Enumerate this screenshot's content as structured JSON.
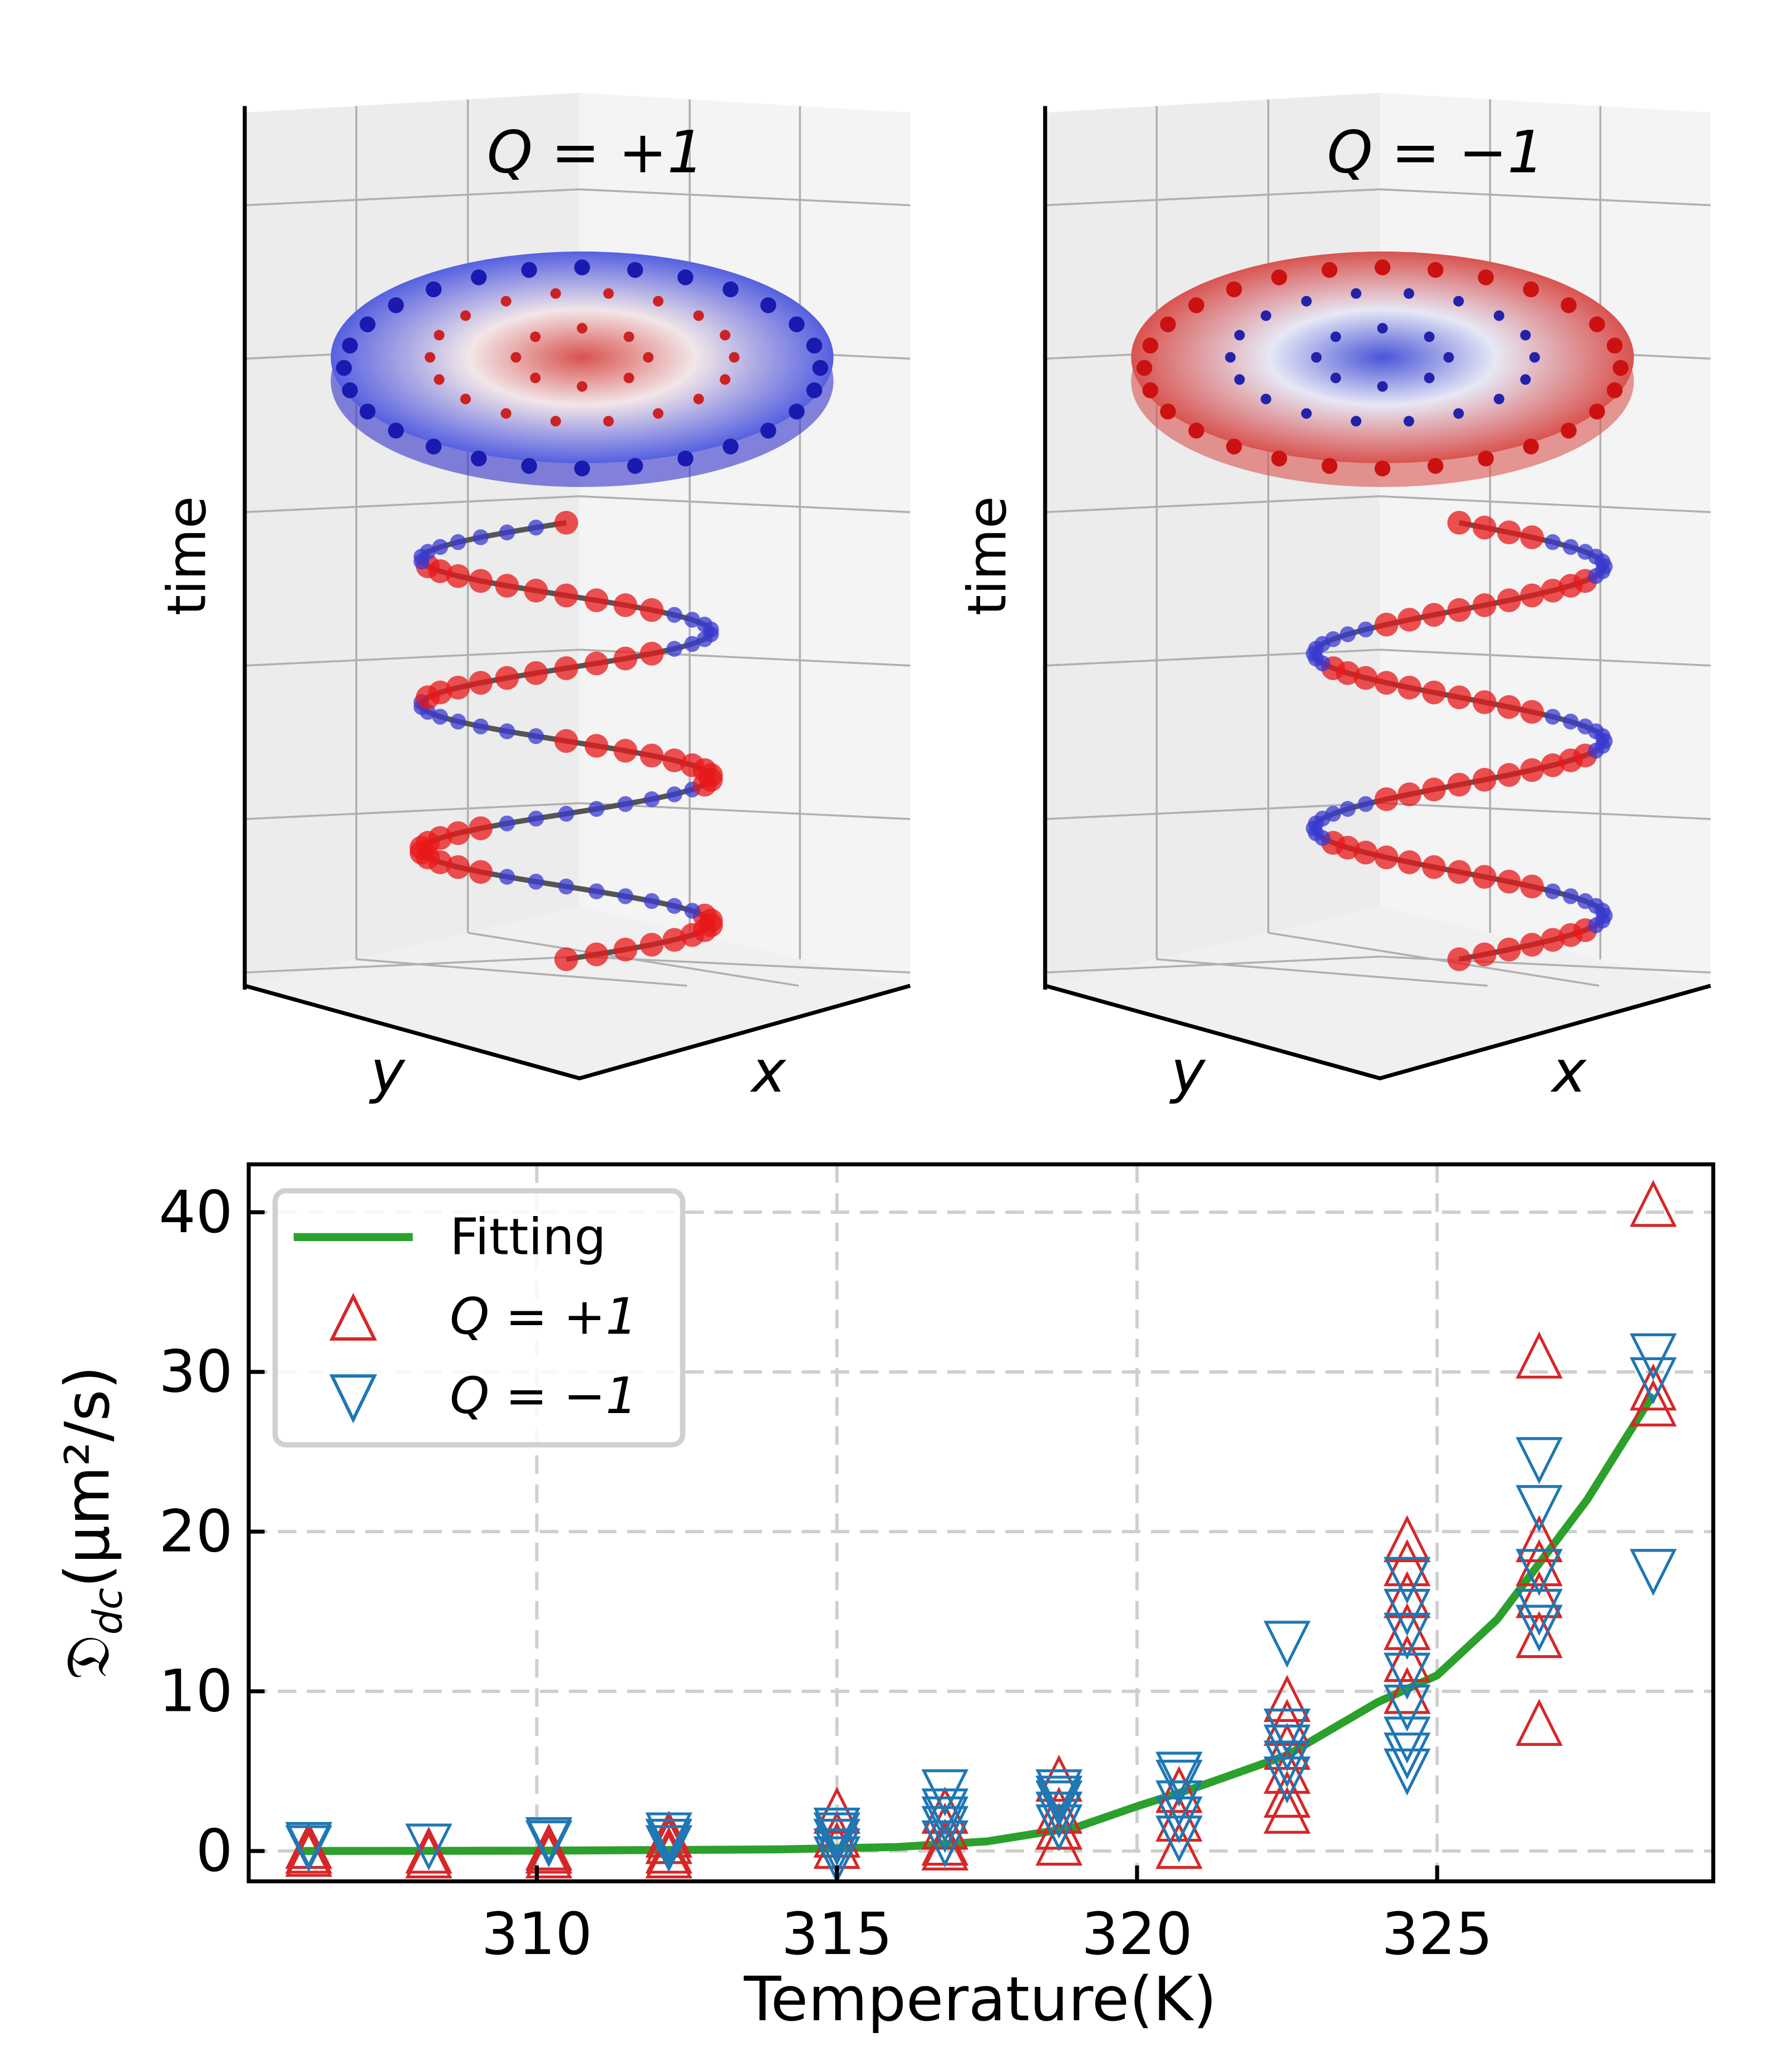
{
  "panels": [
    {
      "label": "Q = +1",
      "z_label": "time",
      "x_label": "x",
      "y_label": "y",
      "disk_center_color": "#d9534f",
      "disk_edge_color": "#3333cc"
    },
    {
      "label": "Q = −1",
      "z_label": "time",
      "x_label": "x",
      "y_label": "y",
      "disk_center_color": "#3333cc",
      "disk_edge_color": "#d9534f"
    }
  ],
  "chart_data": {
    "type": "scatter",
    "xlabel": "Temperature(K)",
    "ylabel": "𝔇dc(μm²/s)",
    "ylabel_main": "𝔇",
    "ylabel_sub": "dc",
    "ylabel_unit": "(μm²/s)",
    "xlim": [
      305.2,
      329.6
    ],
    "ylim": [
      -1.9,
      43
    ],
    "xticks": [
      310,
      315,
      320,
      325
    ],
    "yticks": [
      0,
      10,
      20,
      30,
      40
    ],
    "grid": true,
    "legend_position": "top-left",
    "legend": [
      "Fitting",
      "Q = +1",
      "Q = −1"
    ],
    "colors": {
      "fit": "#2ca02c",
      "q_plus": "#d62728",
      "q_minus": "#1f77b4"
    },
    "fit": {
      "name": "Fitting",
      "x": [
        306,
        310,
        314,
        316,
        317.5,
        319,
        320,
        321,
        322.5,
        324,
        325,
        326,
        327.5,
        328.6
      ],
      "y": [
        0,
        0.02,
        0.1,
        0.25,
        0.6,
        1.5,
        2.8,
        4,
        6,
        9.3,
        11,
        14.5,
        22,
        28.6
      ]
    },
    "series": [
      {
        "name": "Q = +1",
        "marker": "triangle-up",
        "points": [
          [
            306.2,
            0
          ],
          [
            306.2,
            -0.2
          ],
          [
            306.2,
            0.3
          ],
          [
            308.2,
            0
          ],
          [
            308.2,
            -0.3
          ],
          [
            310.2,
            0
          ],
          [
            310.2,
            -0.3
          ],
          [
            310.2,
            0.2
          ],
          [
            312.2,
            -0.3
          ],
          [
            312.2,
            0
          ],
          [
            312.2,
            0.6
          ],
          [
            312.2,
            1
          ],
          [
            315.0,
            0.3
          ],
          [
            315.0,
            1
          ],
          [
            315.0,
            2.5
          ],
          [
            316.8,
            0.2
          ],
          [
            316.8,
            0.5
          ],
          [
            316.8,
            1.5
          ],
          [
            316.8,
            2.5
          ],
          [
            318.7,
            0.5
          ],
          [
            318.7,
            1.5
          ],
          [
            318.7,
            2.5
          ],
          [
            318.7,
            4.5
          ],
          [
            320.7,
            0.3
          ],
          [
            320.7,
            2
          ],
          [
            320.7,
            3.8
          ],
          [
            322.5,
            2.5
          ],
          [
            322.5,
            3.5
          ],
          [
            322.5,
            5
          ],
          [
            322.5,
            6.5
          ],
          [
            322.5,
            8
          ],
          [
            322.5,
            9.5
          ],
          [
            324.5,
            10
          ],
          [
            324.5,
            12
          ],
          [
            324.5,
            14
          ],
          [
            324.5,
            16
          ],
          [
            324.5,
            18
          ],
          [
            324.5,
            19.5
          ],
          [
            326.7,
            8
          ],
          [
            326.7,
            13.5
          ],
          [
            326.7,
            16
          ],
          [
            326.7,
            18
          ],
          [
            326.7,
            19.5
          ],
          [
            326.7,
            31
          ],
          [
            328.6,
            28
          ],
          [
            328.6,
            29
          ],
          [
            328.6,
            40.5
          ]
        ]
      },
      {
        "name": "Q = −1",
        "marker": "triangle-down",
        "points": [
          [
            306.2,
            0.4
          ],
          [
            306.2,
            0.2
          ],
          [
            308.2,
            0.3
          ],
          [
            310.2,
            0.7
          ],
          [
            310.2,
            0.5
          ],
          [
            312.2,
            1
          ],
          [
            312.2,
            0.6
          ],
          [
            312.2,
            0.2
          ],
          [
            315.0,
            1.3
          ],
          [
            315.0,
            1
          ],
          [
            315.0,
            0.6
          ],
          [
            315.0,
            0
          ],
          [
            315.0,
            -0.5
          ],
          [
            316.8,
            3.7
          ],
          [
            316.8,
            2.5
          ],
          [
            316.8,
            2
          ],
          [
            316.8,
            1.4
          ],
          [
            316.8,
            0.5
          ],
          [
            318.7,
            3.7
          ],
          [
            318.7,
            3.3
          ],
          [
            318.7,
            3
          ],
          [
            318.7,
            2.3
          ],
          [
            318.7,
            1.5
          ],
          [
            320.7,
            4.8
          ],
          [
            320.7,
            4.3
          ],
          [
            320.7,
            3
          ],
          [
            320.7,
            2
          ],
          [
            320.7,
            0.8
          ],
          [
            322.5,
            13
          ],
          [
            322.5,
            7.5
          ],
          [
            322.5,
            6.5
          ],
          [
            322.5,
            5.5
          ],
          [
            322.5,
            4.5
          ],
          [
            324.5,
            17
          ],
          [
            324.5,
            15
          ],
          [
            324.5,
            13.5
          ],
          [
            324.5,
            11
          ],
          [
            324.5,
            9
          ],
          [
            324.5,
            7
          ],
          [
            324.5,
            6
          ],
          [
            324.5,
            5
          ],
          [
            326.7,
            24.5
          ],
          [
            326.7,
            21.5
          ],
          [
            326.7,
            17.5
          ],
          [
            326.7,
            15
          ],
          [
            326.7,
            14
          ],
          [
            328.6,
            31
          ],
          [
            328.6,
            29.5
          ],
          [
            328.6,
            17.5
          ]
        ]
      }
    ]
  }
}
